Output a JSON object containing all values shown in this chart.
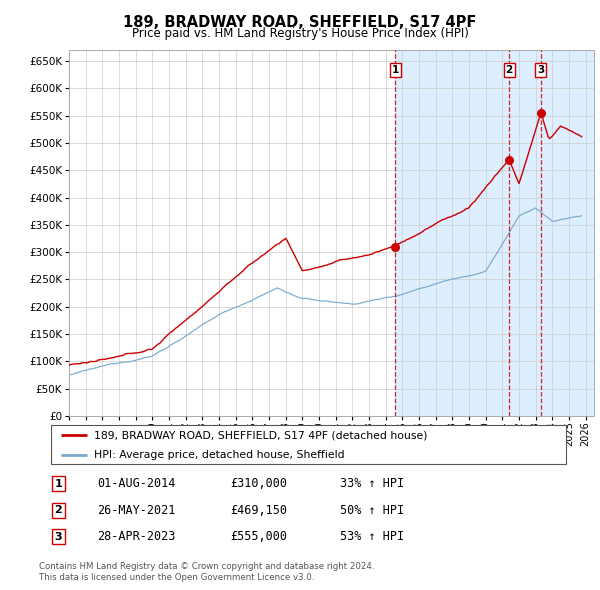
{
  "title": "189, BRADWAY ROAD, SHEFFIELD, S17 4PF",
  "subtitle": "Price paid vs. HM Land Registry's House Price Index (HPI)",
  "legend_red": "189, BRADWAY ROAD, SHEFFIELD, S17 4PF (detached house)",
  "legend_blue": "HPI: Average price, detached house, Sheffield",
  "footer1": "Contains HM Land Registry data © Crown copyright and database right 2024.",
  "footer2": "This data is licensed under the Open Government Licence v3.0.",
  "transactions": [
    {
      "num": 1,
      "date": "01-AUG-2014",
      "price": "£310,000",
      "pct": "33% ↑ HPI",
      "year": 2014.58
    },
    {
      "num": 2,
      "date": "26-MAY-2021",
      "price": "£469,150",
      "pct": "50% ↑ HPI",
      "year": 2021.4
    },
    {
      "num": 3,
      "date": "28-APR-2023",
      "price": "£555,000",
      "pct": "53% ↑ HPI",
      "year": 2023.32
    }
  ],
  "trans_prices": [
    310000,
    469150,
    555000
  ],
  "red_color": "#cc0000",
  "blue_color": "#7aaacc",
  "background_color": "#ddeeff",
  "grid_color": "#cccccc",
  "vline_color": "#cc0000",
  "ylim": [
    0,
    670000
  ],
  "ytick_step": 50000,
  "xlim_start": 1995.0,
  "xlim_end": 2026.5
}
